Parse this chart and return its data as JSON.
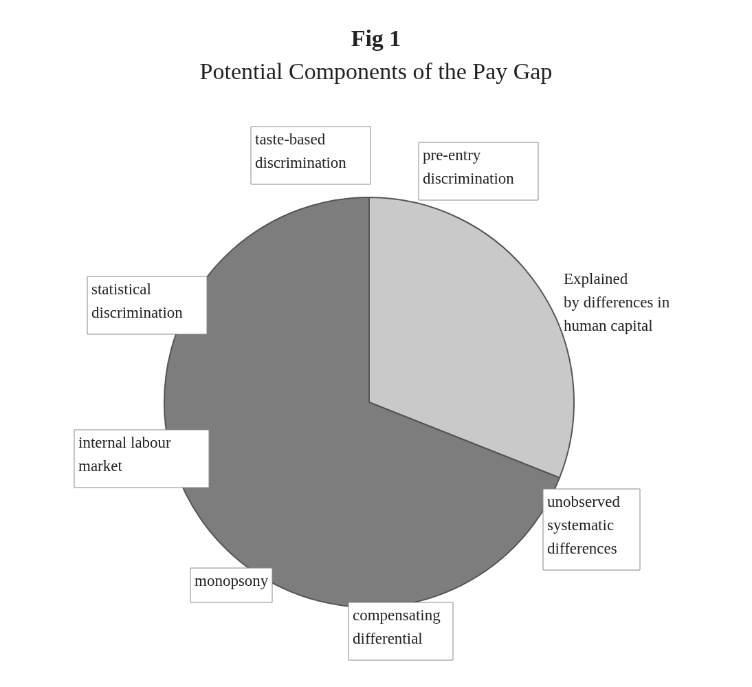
{
  "chart_data": {
    "type": "pie",
    "title": "Fig 1",
    "subtitle": "Potential Components of the Pay Gap",
    "categories": [
      "Explained\nby differences in\nhuman capital",
      null
    ],
    "values": [
      31,
      69
    ],
    "colors": [
      "#c9c9c9",
      "#7d7d7d"
    ],
    "annotations": [
      "taste-based\ndiscrimination",
      "pre-entry\ndiscrimination",
      "statistical\ndiscrimination",
      "internal  labour\nmarket",
      "unobserved\nsystematic\ndifferences",
      "monopsony",
      "compensating\ndifferential"
    ]
  }
}
